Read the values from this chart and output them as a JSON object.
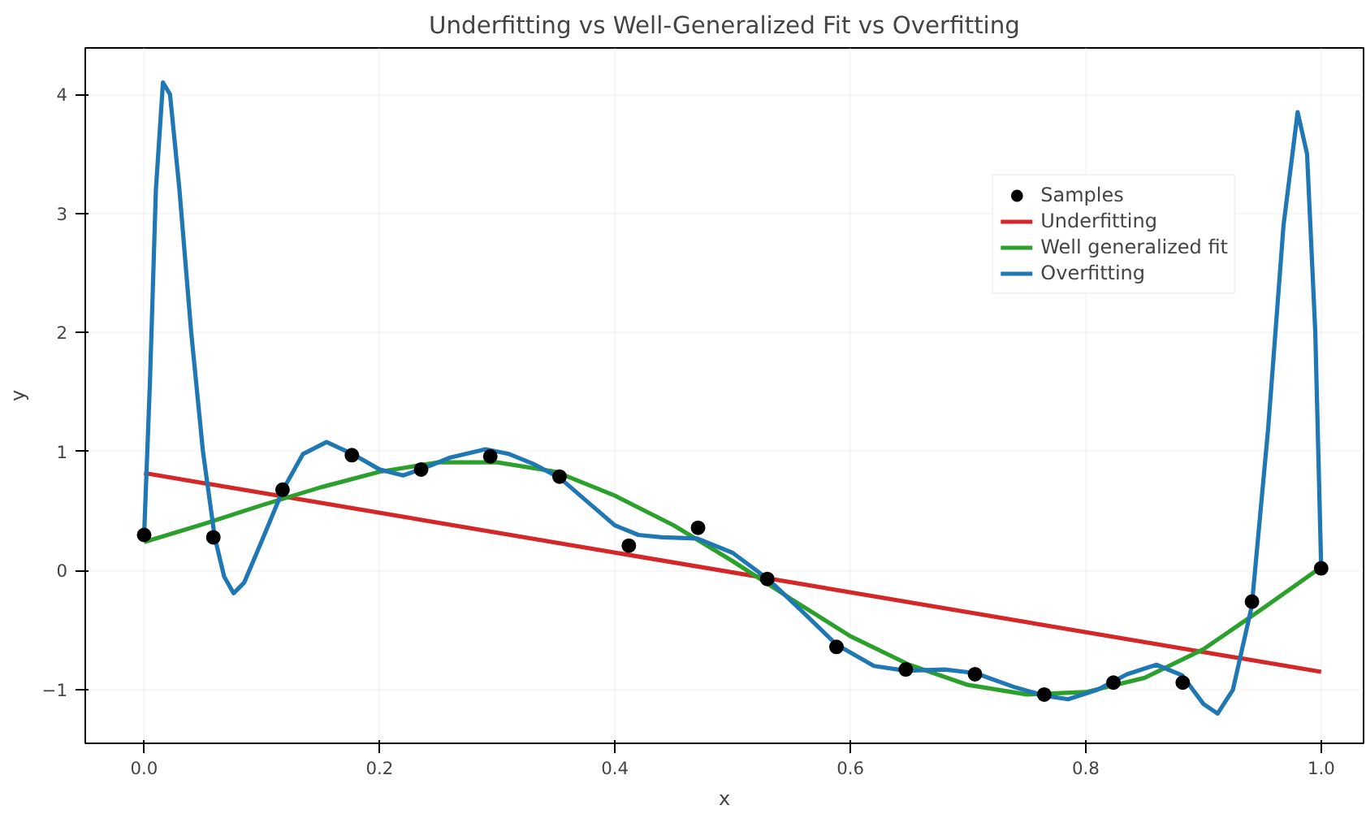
{
  "chart_data": {
    "type": "line",
    "title": "Underfitting vs Well-Generalized Fit vs Overfitting",
    "xlabel": "x",
    "ylabel": "y",
    "xlim": [
      -0.05,
      1.036
    ],
    "ylim": [
      -1.45,
      4.39
    ],
    "xticks": [
      {
        "value": 0,
        "label": "0.0"
      },
      {
        "value": 0.2,
        "label": "0.2"
      },
      {
        "value": 0.4,
        "label": "0.4"
      },
      {
        "value": 0.6,
        "label": "0.6"
      },
      {
        "value": 0.8,
        "label": "0.8"
      },
      {
        "value": 1,
        "label": "1.0"
      }
    ],
    "yticks": [
      -1,
      0,
      1,
      2,
      3,
      4
    ],
    "grid": true,
    "legend": "top right",
    "line_style": "solid",
    "series": [
      {
        "name": "Samples",
        "type": "scatter",
        "marker": "circle",
        "color": "#000000",
        "x": [
          0,
          0.0588,
          0.1176,
          0.1765,
          0.2353,
          0.2941,
          0.3529,
          0.4118,
          0.4706,
          0.5294,
          0.5882,
          0.6471,
          0.7059,
          0.7647,
          0.8235,
          0.8824,
          0.9412,
          1.0
        ],
        "values": [
          0.3,
          0.28,
          0.68,
          0.97,
          0.85,
          0.96,
          0.79,
          0.21,
          0.36,
          -0.07,
          -0.64,
          -0.83,
          -0.87,
          -1.04,
          -0.94,
          -0.94,
          -0.26,
          0.02
        ]
      },
      {
        "name": "Underfitting",
        "color": "#d62728",
        "x": [
          0,
          1
        ],
        "values": [
          0.82,
          -0.85
        ]
      },
      {
        "name": "Well generalized fit",
        "color": "#2ca02c",
        "x": [
          0,
          0.05,
          0.1,
          0.15,
          0.2,
          0.25,
          0.3,
          0.35,
          0.4,
          0.45,
          0.5,
          0.55,
          0.6,
          0.65,
          0.7,
          0.75,
          0.8,
          0.85,
          0.9,
          0.95,
          1.0
        ],
        "values": [
          0.24,
          0.39,
          0.55,
          0.7,
          0.83,
          0.91,
          0.91,
          0.83,
          0.63,
          0.38,
          0.08,
          -0.24,
          -0.55,
          -0.79,
          -0.96,
          -1.04,
          -1.02,
          -0.9,
          -0.66,
          -0.32,
          0.03
        ]
      },
      {
        "name": "Overfitting",
        "color": "#1f77b4",
        "x": [
          0,
          0.005,
          0.01,
          0.016,
          0.022,
          0.03,
          0.04,
          0.05,
          0.06,
          0.068,
          0.076,
          0.085,
          0.1,
          0.118,
          0.135,
          0.155,
          0.177,
          0.2,
          0.22,
          0.235,
          0.26,
          0.29,
          0.31,
          0.33,
          0.353,
          0.38,
          0.4,
          0.42,
          0.44,
          0.47,
          0.5,
          0.53,
          0.56,
          0.588,
          0.62,
          0.647,
          0.68,
          0.706,
          0.74,
          0.765,
          0.785,
          0.81,
          0.835,
          0.86,
          0.882,
          0.9,
          0.912,
          0.925,
          0.941,
          0.955,
          0.968,
          0.98,
          0.988,
          0.995,
          1.0
        ],
        "values": [
          0.3,
          1.6,
          3.2,
          4.1,
          4.0,
          3.2,
          2.0,
          1.0,
          0.28,
          -0.05,
          -0.19,
          -0.1,
          0.25,
          0.68,
          0.98,
          1.08,
          0.98,
          0.85,
          0.8,
          0.85,
          0.95,
          1.02,
          0.98,
          0.9,
          0.78,
          0.55,
          0.38,
          0.3,
          0.28,
          0.27,
          0.15,
          -0.07,
          -0.35,
          -0.62,
          -0.8,
          -0.84,
          -0.83,
          -0.86,
          -0.98,
          -1.05,
          -1.08,
          -1.0,
          -0.87,
          -0.79,
          -0.88,
          -1.12,
          -1.2,
          -1.0,
          -0.3,
          1.2,
          2.9,
          3.85,
          3.5,
          2.0,
          0.02
        ]
      }
    ]
  }
}
